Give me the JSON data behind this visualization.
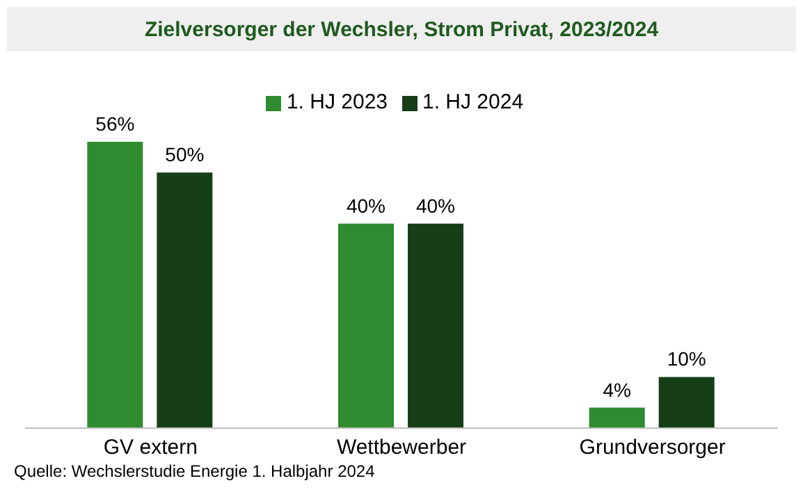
{
  "chart_data": {
    "type": "bar",
    "title": "Zielversorger der Wechsler, Strom Privat, 2023/2024",
    "categories": [
      "GV extern",
      "Wettbewerber",
      "Grundversorger"
    ],
    "series": [
      {
        "name": "1. HJ 2023",
        "color": "#2e8b30",
        "values": [
          56,
          40,
          4
        ],
        "value_labels": [
          "56%",
          "40%",
          "4%"
        ]
      },
      {
        "name": "1. HJ 2024",
        "color": "#173f17",
        "values": [
          50,
          40,
          10
        ],
        "value_labels": [
          "50%",
          "40%",
          "10%"
        ]
      }
    ],
    "legend": "top",
    "annotations": [
      "Quelle: Wechslerstudie Energie 1. Halbjahr 2024"
    ]
  }
}
